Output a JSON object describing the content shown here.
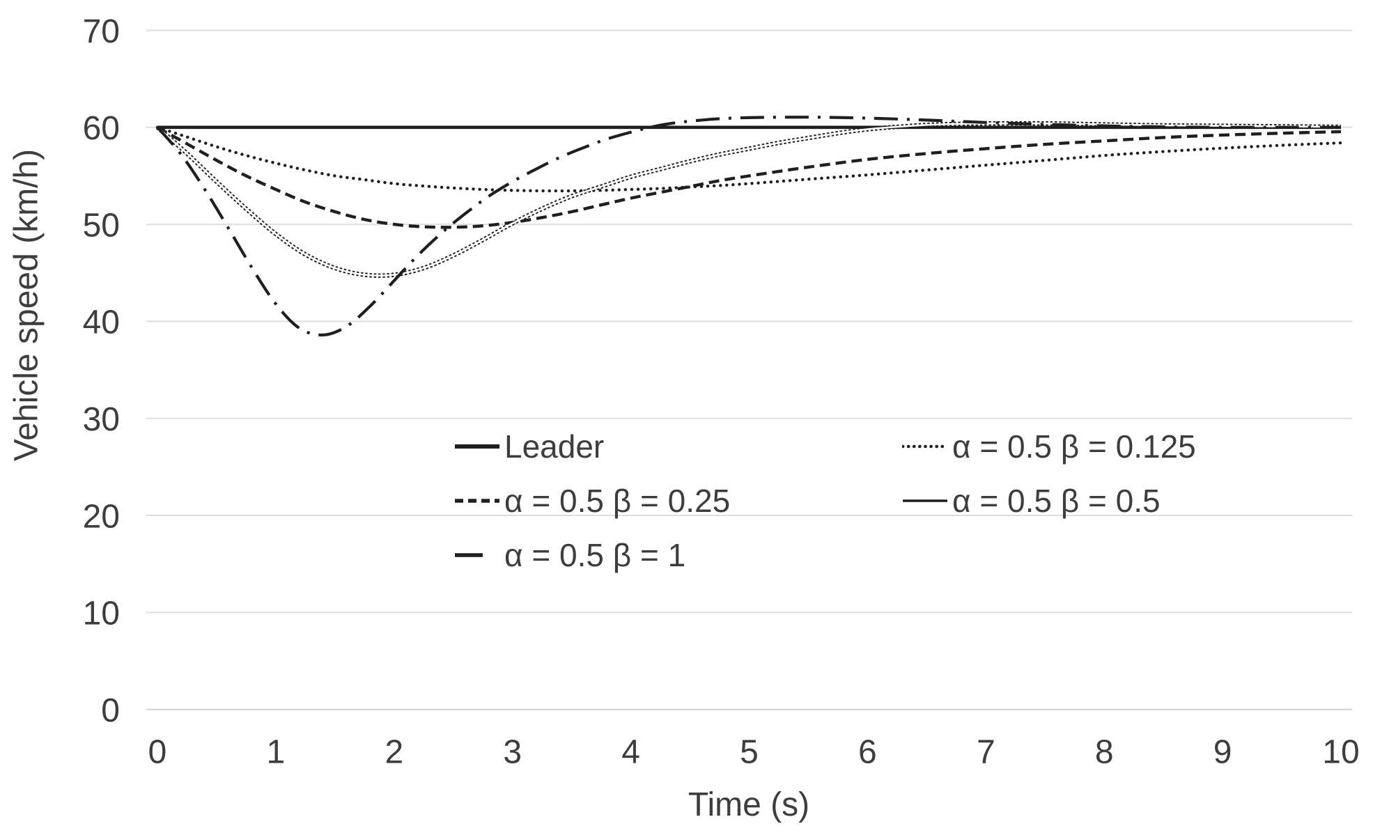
{
  "chart_data": {
    "type": "line",
    "title": "",
    "xlabel": "Time (s)",
    "ylabel": "Vehicle speed (km/h)",
    "xlim": [
      0,
      10
    ],
    "ylim": [
      0,
      70
    ],
    "x_ticks": [
      0,
      1,
      2,
      3,
      4,
      5,
      6,
      7,
      8,
      9,
      10
    ],
    "y_ticks": [
      0,
      10,
      20,
      30,
      40,
      50,
      60,
      70
    ],
    "grid": "horizontal",
    "legend_position": "inside-lower-center-two-columns",
    "colors": {
      "line": "#1f1f1f",
      "grid": "#dedede",
      "axis_line": "#cfcfcf",
      "text": "#3d3d3d",
      "hollow_core": "#ffffff",
      "background": "#ffffff"
    },
    "series": [
      {
        "name": "Leader",
        "style": "solid-thick",
        "legend": {
          "col": 0,
          "row": 0
        },
        "points": [
          [
            0,
            60
          ],
          [
            10,
            60
          ]
        ]
      },
      {
        "name": "α = 0.5 β = 0.125",
        "style": "dotted",
        "legend": {
          "col": 1,
          "row": 0
        },
        "points": [
          [
            0,
            60
          ],
          [
            0.25,
            59.0
          ],
          [
            0.5,
            58.0
          ],
          [
            0.75,
            57.1
          ],
          [
            1,
            56.3
          ],
          [
            1.25,
            55.6
          ],
          [
            1.5,
            55.0
          ],
          [
            1.75,
            54.6
          ],
          [
            2,
            54.2
          ],
          [
            2.25,
            53.95
          ],
          [
            2.5,
            53.75
          ],
          [
            2.75,
            53.6
          ],
          [
            3,
            53.5
          ],
          [
            3.25,
            53.45
          ],
          [
            3.5,
            53.45
          ],
          [
            3.75,
            53.5
          ],
          [
            4,
            53.6
          ],
          [
            4.25,
            53.7
          ],
          [
            4.5,
            53.85
          ],
          [
            4.75,
            54.0
          ],
          [
            5,
            54.2
          ],
          [
            5.5,
            54.65
          ],
          [
            6,
            55.1
          ],
          [
            6.5,
            55.6
          ],
          [
            7,
            56.1
          ],
          [
            7.5,
            56.6
          ],
          [
            8,
            57.1
          ],
          [
            8.5,
            57.5
          ],
          [
            9,
            57.85
          ],
          [
            9.5,
            58.15
          ],
          [
            10,
            58.4
          ]
        ]
      },
      {
        "name": "α = 0.5 β = 0.25",
        "style": "dashed",
        "legend": {
          "col": 0,
          "row": 1
        },
        "points": [
          [
            0,
            60
          ],
          [
            0.25,
            58.3
          ],
          [
            0.5,
            56.6
          ],
          [
            0.75,
            55.0
          ],
          [
            1,
            53.6
          ],
          [
            1.25,
            52.3
          ],
          [
            1.5,
            51.3
          ],
          [
            1.75,
            50.5
          ],
          [
            2,
            50.0
          ],
          [
            2.25,
            49.75
          ],
          [
            2.5,
            49.7
          ],
          [
            2.75,
            49.85
          ],
          [
            3,
            50.2
          ],
          [
            3.25,
            50.7
          ],
          [
            3.5,
            51.3
          ],
          [
            3.75,
            52.0
          ],
          [
            4,
            52.7
          ],
          [
            4.25,
            53.3
          ],
          [
            4.5,
            53.9
          ],
          [
            4.75,
            54.5
          ],
          [
            5,
            55.0
          ],
          [
            5.5,
            55.9
          ],
          [
            6,
            56.7
          ],
          [
            6.5,
            57.3
          ],
          [
            7,
            57.8
          ],
          [
            7.5,
            58.25
          ],
          [
            8,
            58.6
          ],
          [
            8.5,
            58.95
          ],
          [
            9,
            59.2
          ],
          [
            9.5,
            59.4
          ],
          [
            10,
            59.55
          ]
        ]
      },
      {
        "name": "α = 0.5 β = 0.5",
        "style": "beaded",
        "legend": {
          "col": 1,
          "row": 1
        },
        "points": [
          [
            0,
            60
          ],
          [
            0.25,
            57.3
          ],
          [
            0.5,
            54.4
          ],
          [
            0.75,
            51.6
          ],
          [
            1,
            49.0
          ],
          [
            1.25,
            46.9
          ],
          [
            1.5,
            45.5
          ],
          [
            1.75,
            44.8
          ],
          [
            2,
            44.8
          ],
          [
            2.25,
            45.5
          ],
          [
            2.5,
            46.8
          ],
          [
            2.75,
            48.4
          ],
          [
            3,
            50.1
          ],
          [
            3.25,
            51.6
          ],
          [
            3.5,
            52.9
          ],
          [
            3.75,
            53.9
          ],
          [
            4,
            54.9
          ],
          [
            4.25,
            55.7
          ],
          [
            4.5,
            56.5
          ],
          [
            4.75,
            57.2
          ],
          [
            5,
            57.8
          ],
          [
            5.25,
            58.4
          ],
          [
            5.5,
            58.9
          ],
          [
            5.75,
            59.4
          ],
          [
            6,
            59.8
          ],
          [
            6.25,
            60.05
          ],
          [
            6.5,
            60.25
          ],
          [
            6.75,
            60.35
          ],
          [
            7,
            60.4
          ],
          [
            7.5,
            60.4
          ],
          [
            8,
            60.3
          ],
          [
            8.5,
            60.2
          ],
          [
            9,
            60.15
          ],
          [
            9.5,
            60.1
          ],
          [
            10,
            60.05
          ]
        ]
      },
      {
        "name": "α = 0.5 β = 1",
        "style": "dashdot",
        "legend": {
          "col": 0,
          "row": 2
        },
        "points": [
          [
            0,
            60
          ],
          [
            0.2,
            57.2
          ],
          [
            0.4,
            53.6
          ],
          [
            0.6,
            49.6
          ],
          [
            0.8,
            45.5
          ],
          [
            1,
            41.8
          ],
          [
            1.2,
            39.3
          ],
          [
            1.4,
            38.6
          ],
          [
            1.6,
            39.5
          ],
          [
            1.8,
            41.6
          ],
          [
            2,
            44.2
          ],
          [
            2.2,
            46.8
          ],
          [
            2.4,
            49.1
          ],
          [
            2.6,
            51.1
          ],
          [
            2.8,
            52.9
          ],
          [
            3,
            54.4
          ],
          [
            3.2,
            55.7
          ],
          [
            3.4,
            56.9
          ],
          [
            3.6,
            57.9
          ],
          [
            3.8,
            58.8
          ],
          [
            4,
            59.5
          ],
          [
            4.2,
            60.1
          ],
          [
            4.4,
            60.5
          ],
          [
            4.7,
            60.85
          ],
          [
            5,
            61.0
          ],
          [
            5.5,
            61.05
          ],
          [
            6,
            60.95
          ],
          [
            6.5,
            60.75
          ],
          [
            7,
            60.5
          ],
          [
            7.5,
            60.3
          ],
          [
            8,
            60.15
          ],
          [
            8.5,
            60.05
          ],
          [
            9,
            60.0
          ],
          [
            9.5,
            60.0
          ],
          [
            10,
            60.0
          ]
        ]
      }
    ]
  }
}
